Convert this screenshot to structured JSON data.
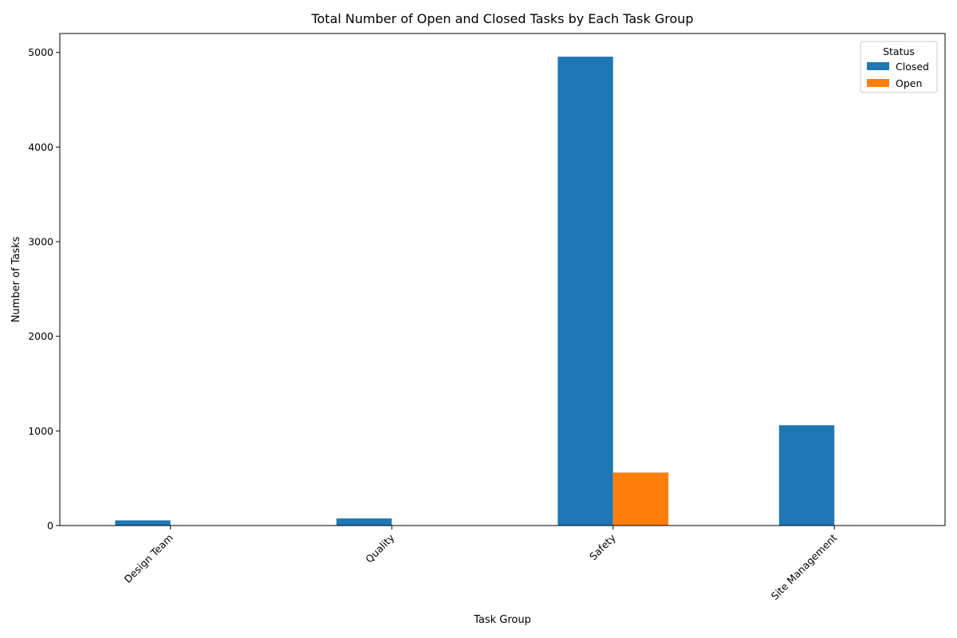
{
  "chart_data": {
    "type": "bar",
    "title": "Total Number of Open and Closed Tasks by Each Task Group",
    "xlabel": "Task Group",
    "ylabel": "Number of Tasks",
    "categories": [
      "Design Team",
      "Quality",
      "Safety",
      "Site Management"
    ],
    "series": [
      {
        "name": "Closed",
        "color": "#1f77b4",
        "values": [
          55,
          75,
          4955,
          1060
        ]
      },
      {
        "name": "Open",
        "color": "#ff7f0e",
        "values": [
          0,
          0,
          560,
          0
        ]
      }
    ],
    "ylim": [
      0,
      5200
    ],
    "yticks": [
      0,
      1000,
      2000,
      3000,
      4000,
      5000
    ],
    "grid": false,
    "legend": {
      "title": "Status",
      "position": "top-right"
    }
  }
}
